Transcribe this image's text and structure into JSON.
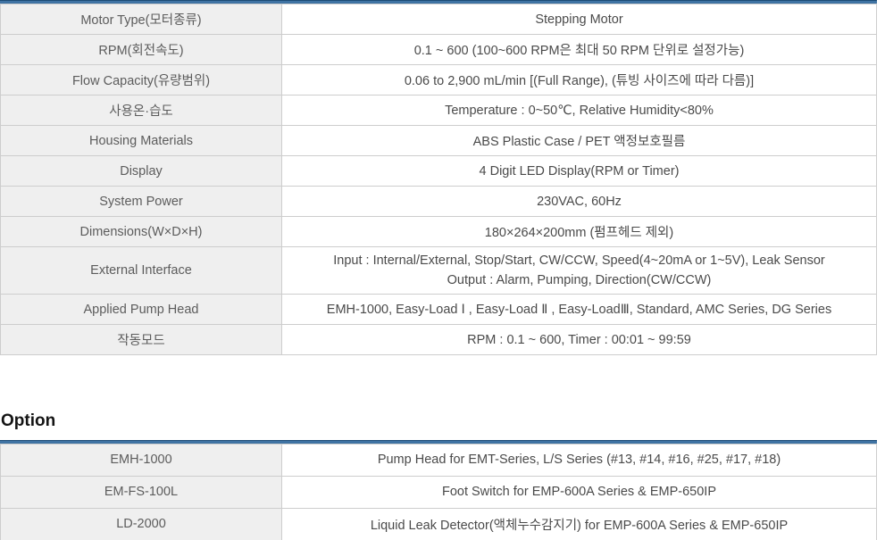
{
  "colors": {
    "accent_bar_dark": "#1d4c77",
    "accent_bar": "#3f73a3",
    "cell_border": "#cdcdcd",
    "label_bg": "#efefef",
    "label_text": "#5c5c5c",
    "value_text": "#4a4a4a"
  },
  "spec_table": {
    "rows": [
      {
        "label": "Motor Type(모터종류)",
        "value": "Stepping Motor"
      },
      {
        "label": "RPM(회전속도)",
        "value": "0.1 ~ 600 (100~600 RPM은 최대 50 RPM 단위로 설정가능)"
      },
      {
        "label": "Flow Capacity(유량범위)",
        "value": "0.06 to 2,900 mL/min [(Full Range), (튜빙 사이즈에 따라 다름)]"
      },
      {
        "label": "사용온·습도",
        "value": "Temperature : 0~50℃, Relative Humidity<80%"
      },
      {
        "label": "Housing Materials",
        "value": "ABS Plastic Case / PET 액정보호필름"
      },
      {
        "label": "Display",
        "value": "4 Digit LED Display(RPM or Timer)"
      },
      {
        "label": "System Power",
        "value": "230VAC, 60Hz"
      },
      {
        "label": "Dimensions(W×D×H)",
        "value": "180×264×200mm (펌프헤드 제외)"
      },
      {
        "label": "External Interface",
        "value_line1": "Input : Internal/External, Stop/Start, CW/CCW, Speed(4~20mA or 1~5V), Leak Sensor",
        "value_line2": "Output : Alarm, Pumping, Direction(CW/CCW)"
      },
      {
        "label": "Applied Pump Head",
        "value": "EMH-1000, Easy-Load Ⅰ , Easy-Load Ⅱ , Easy-LoadⅢ, Standard, AMC Series, DG Series"
      },
      {
        "label": "작동모드",
        "value": "RPM : 0.1 ~ 600, Timer : 00:01 ~ 99:59"
      }
    ]
  },
  "option_section": {
    "heading": "Option",
    "rows": [
      {
        "label": "EMH-1000",
        "value": "Pump Head for EMT-Series, L/S Series (#13, #14, #16, #25, #17, #18)"
      },
      {
        "label": "EM-FS-100L",
        "value": "Foot Switch for EMP-600A Series & EMP-650IP"
      },
      {
        "label": "LD-2000",
        "value": "Liquid Leak Detector(액체누수감지기) for EMP-600A Series & EMP-650IP"
      }
    ]
  }
}
